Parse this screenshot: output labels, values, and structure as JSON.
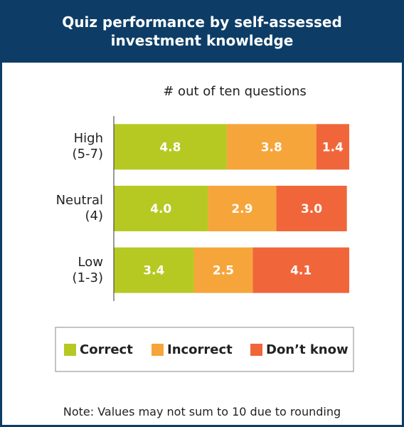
{
  "chart_data": {
    "type": "stacked-bar-horizontal",
    "title": "Quiz performance by self-assessed\ninvestment knowledge",
    "subtitle": "# out of ten questions",
    "categories": [
      "High\n(5-7)",
      "Neutral\n(4)",
      "Low\n(1-3)"
    ],
    "series": [
      {
        "name": "Correct",
        "color": "#b5c922",
        "values": [
          4.8,
          4.0,
          3.4
        ],
        "value_labels": [
          "4.8",
          "4.0",
          "3.4"
        ]
      },
      {
        "name": "Incorrect",
        "color": "#f6a53a",
        "values": [
          3.8,
          2.9,
          2.5
        ],
        "value_labels": [
          "3.8",
          "2.9",
          "2.5"
        ]
      },
      {
        "name": "Don’t know",
        "color": "#f0663a",
        "values": [
          1.4,
          3.0,
          4.1
        ],
        "value_labels": [
          "1.4",
          "3.0",
          "4.1"
        ]
      }
    ],
    "xlim": [
      0,
      10
    ],
    "legend": "bottom",
    "note": "Note: Values may not sum to 10 due to rounding"
  }
}
